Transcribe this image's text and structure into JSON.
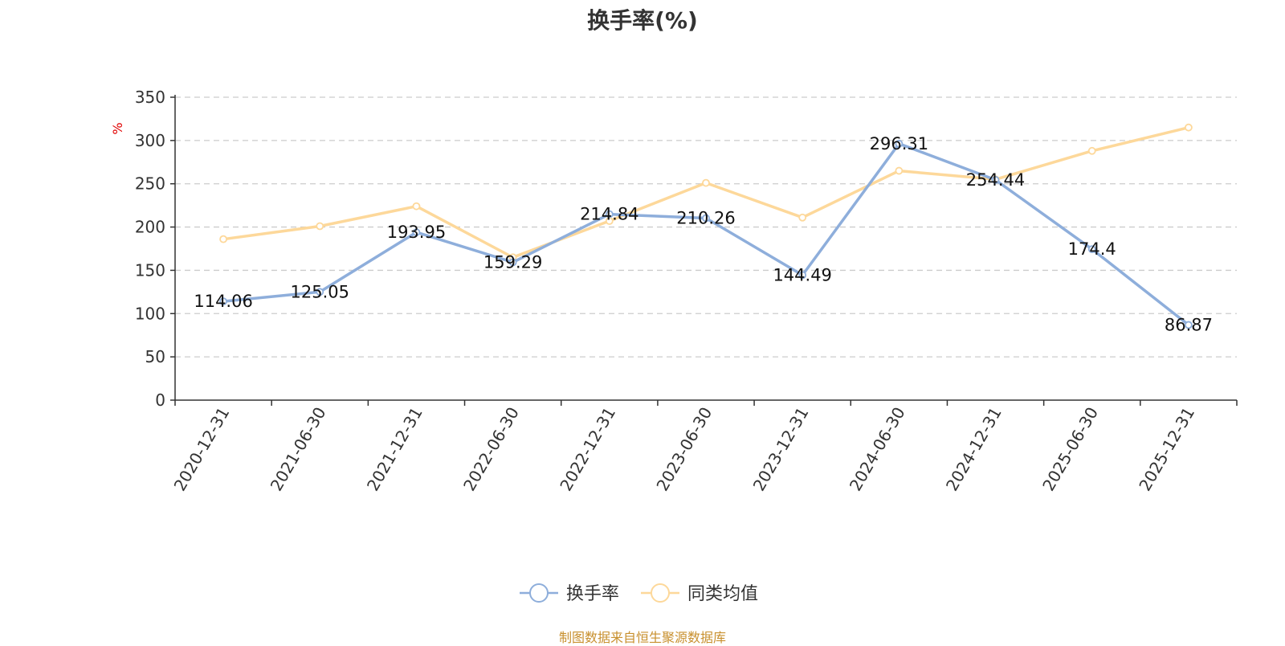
{
  "chart_data": {
    "type": "line",
    "title": "换手率(%)",
    "ylabel": "%",
    "xlabel": "",
    "ylim": [
      0,
      350
    ],
    "yticks": [
      0,
      50,
      100,
      150,
      200,
      250,
      300,
      350
    ],
    "categories": [
      "2020-12-31",
      "2021-06-30",
      "2021-12-31",
      "2022-06-30",
      "2022-12-31",
      "2023-06-30",
      "2023-12-31",
      "2024-06-30",
      "2024-12-31",
      "2025-06-30",
      "2025-12-31"
    ],
    "series": [
      {
        "name": "换手率",
        "color": "#8eaedb",
        "values": [
          114.06,
          125.05,
          193.95,
          159.29,
          214.84,
          210.26,
          144.49,
          296.31,
          254.44,
          174.4,
          86.87
        ],
        "labels": [
          "114.06",
          "125.05",
          "193.95",
          "159.29",
          "214.84",
          "210.26",
          "144.49",
          "296.31",
          "254.44",
          "174.4",
          "86.87"
        ]
      },
      {
        "name": "同类均值",
        "color": "#fdd89a",
        "values": [
          186,
          201,
          224,
          165,
          207,
          251,
          211,
          265,
          255,
          288,
          315
        ]
      }
    ],
    "grid": true,
    "legend": "bottom-center"
  },
  "source_text": "制图数据来自恒生聚源数据库"
}
